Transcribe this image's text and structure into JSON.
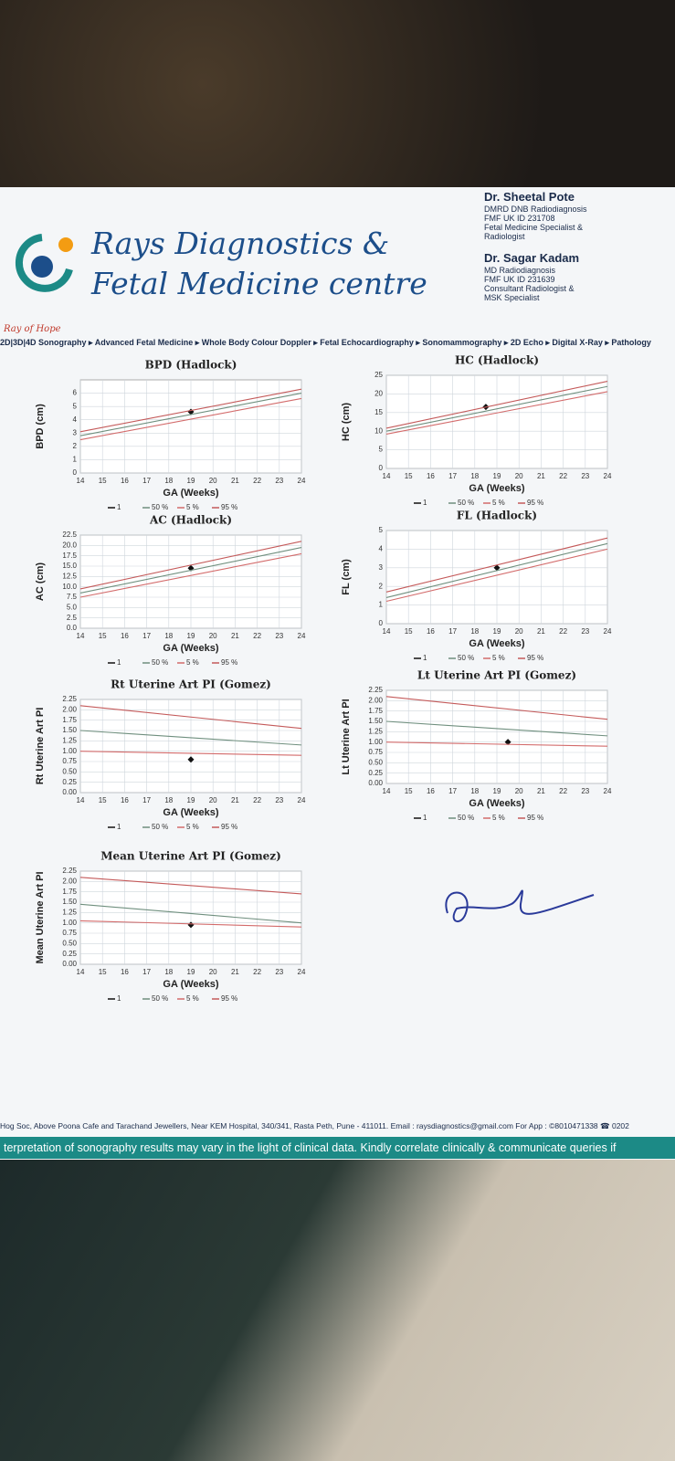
{
  "header": {
    "logo_tagline": "Ray of Hope",
    "title_line1": "Rays Diagnostics &",
    "title_line2": "Fetal Medicine centre",
    "doctors": [
      {
        "name": "Dr. Sheetal Pote",
        "details": [
          "DMRD DNB Radiodiagnosis",
          "FMF UK ID 231708",
          "Fetal Medicine Specialist &",
          "Radiologist"
        ]
      },
      {
        "name": "Dr. Sagar Kadam",
        "details": [
          "MD Radiodiagnosis",
          "FMF UK ID 231639",
          "Consultant Radiologist &",
          "MSK Specialist"
        ]
      }
    ],
    "services": "2D|3D|4D Sonography ▸ Advanced Fetal Medicine ▸ Whole Body Colour Doppler ▸ Fetal Echocardiography ▸ Sonomammography ▸ 2D Echo ▸ Digital X-Ray ▸ Pathology"
  },
  "chart_data": [
    {
      "type": "line",
      "title": "BPD (Hadlock)",
      "x_label": "GA (Weeks)",
      "y_label": "BPD (cm)",
      "grid": true,
      "xlim": [
        14,
        24
      ],
      "xticks": [
        14,
        15,
        16,
        17,
        18,
        19,
        20,
        21,
        22,
        23,
        24
      ],
      "ylim": [
        0,
        7
      ],
      "yticks": [
        0,
        1,
        2,
        3,
        4,
        5,
        6
      ],
      "series": [
        {
          "name": "1",
          "color": "#111111",
          "marker": "diamond",
          "x": [
            19
          ],
          "values": [
            4.6
          ]
        },
        {
          "name": "50 %",
          "color": "#6f8f7e",
          "x": [
            14,
            24
          ],
          "values": [
            2.8,
            6.0
          ]
        },
        {
          "name": "5 %",
          "color": "#d36b6b",
          "x": [
            14,
            24
          ],
          "values": [
            2.5,
            5.6
          ]
        },
        {
          "name": "95 %",
          "color": "#c45a5a",
          "x": [
            14,
            24
          ],
          "values": [
            3.1,
            6.3
          ]
        }
      ]
    },
    {
      "type": "line",
      "title": "HC (Hadlock)",
      "x_label": "GA (Weeks)",
      "y_label": "HC (cm)",
      "grid": true,
      "xlim": [
        14,
        24
      ],
      "xticks": [
        14,
        15,
        16,
        17,
        18,
        19,
        20,
        21,
        22,
        23,
        24
      ],
      "ylim": [
        0,
        25
      ],
      "yticks": [
        0,
        5,
        10,
        15,
        20,
        25
      ],
      "series": [
        {
          "name": "1",
          "color": "#111111",
          "marker": "diamond",
          "x": [
            18.5
          ],
          "values": [
            16.5
          ]
        },
        {
          "name": "50 %",
          "color": "#6f8f7e",
          "x": [
            14,
            24
          ],
          "values": [
            10.0,
            22.0
          ]
        },
        {
          "name": "5 %",
          "color": "#d36b6b",
          "x": [
            14,
            24
          ],
          "values": [
            9.2,
            20.6
          ]
        },
        {
          "name": "95 %",
          "color": "#c45a5a",
          "x": [
            14,
            24
          ],
          "values": [
            10.8,
            23.4
          ]
        }
      ]
    },
    {
      "type": "line",
      "title": "AC (Hadlock)",
      "x_label": "GA (Weeks)",
      "y_label": "AC (cm)",
      "grid": true,
      "xlim": [
        14,
        24
      ],
      "xticks": [
        14,
        15,
        16,
        17,
        18,
        19,
        20,
        21,
        22,
        23,
        24
      ],
      "ylim": [
        0,
        22.5
      ],
      "yticks": [
        {
          "value": 0,
          "label": "0.0"
        },
        2.5,
        {
          "value": 5,
          "label": "5.0"
        },
        7.5,
        {
          "value": 10,
          "label": "10.0"
        },
        12.5,
        {
          "value": 15,
          "label": "15.0"
        },
        17.5,
        {
          "value": 20,
          "label": "20.0"
        },
        22.5
      ],
      "series": [
        {
          "name": "1",
          "color": "#111111",
          "marker": "diamond",
          "x": [
            19
          ],
          "values": [
            14.5
          ]
        },
        {
          "name": "50 %",
          "color": "#6f8f7e",
          "x": [
            14,
            24
          ],
          "values": [
            8.5,
            19.5
          ]
        },
        {
          "name": "5 %",
          "color": "#d36b6b",
          "x": [
            14,
            24
          ],
          "values": [
            7.5,
            18.0
          ]
        },
        {
          "name": "95 %",
          "color": "#c45a5a",
          "x": [
            14,
            24
          ],
          "values": [
            9.5,
            21.0
          ]
        }
      ]
    },
    {
      "type": "line",
      "title": "FL (Hadlock)",
      "x_label": "GA (Weeks)",
      "y_label": "FL (cm)",
      "grid": true,
      "xlim": [
        14,
        24
      ],
      "xticks": [
        14,
        15,
        16,
        17,
        18,
        19,
        20,
        21,
        22,
        23,
        24
      ],
      "ylim": [
        0,
        5
      ],
      "yticks": [
        0,
        1,
        2,
        3,
        4,
        5
      ],
      "series": [
        {
          "name": "1",
          "color": "#111111",
          "marker": "diamond",
          "x": [
            19
          ],
          "values": [
            3.0
          ]
        },
        {
          "name": "50 %",
          "color": "#6f8f7e",
          "x": [
            14,
            24
          ],
          "values": [
            1.4,
            4.3
          ]
        },
        {
          "name": "5 %",
          "color": "#d36b6b",
          "x": [
            14,
            24
          ],
          "values": [
            1.2,
            4.0
          ]
        },
        {
          "name": "95 %",
          "color": "#c45a5a",
          "x": [
            14,
            24
          ],
          "values": [
            1.7,
            4.6
          ]
        }
      ]
    },
    {
      "type": "line",
      "title": "Rt Uterine Art PI (Gomez)",
      "x_label": "GA (Weeks)",
      "y_label": "Rt Uterine Art PI",
      "grid": true,
      "xlim": [
        14,
        24
      ],
      "xticks": [
        14,
        15,
        16,
        17,
        18,
        19,
        20,
        21,
        22,
        23,
        24
      ],
      "ylim": [
        0,
        2.25
      ],
      "yticks": [
        {
          "value": 0,
          "label": "0.00"
        },
        0.25,
        {
          "value": 0.5,
          "label": "0.50"
        },
        0.75,
        {
          "value": 1,
          "label": "1.00"
        },
        1.25,
        {
          "value": 1.5,
          "label": "1.50"
        },
        1.75,
        {
          "value": 2,
          "label": "2.00"
        },
        2.25
      ],
      "series": [
        {
          "name": "1",
          "color": "#111111",
          "marker": "diamond",
          "x": [
            19
          ],
          "values": [
            0.8
          ]
        },
        {
          "name": "50 %",
          "color": "#6f8f7e",
          "x": [
            14,
            24
          ],
          "values": [
            1.5,
            1.15
          ]
        },
        {
          "name": "5 %",
          "color": "#d36b6b",
          "x": [
            14,
            24
          ],
          "values": [
            1.0,
            0.9
          ]
        },
        {
          "name": "95 %",
          "color": "#c45a5a",
          "x": [
            14,
            24
          ],
          "values": [
            2.1,
            1.55
          ]
        }
      ]
    },
    {
      "type": "line",
      "title": "Lt Uterine Art PI (Gomez)",
      "x_label": "GA (Weeks)",
      "y_label": "Lt Uterine Art PI",
      "grid": true,
      "xlim": [
        14,
        24
      ],
      "xticks": [
        14,
        15,
        16,
        17,
        18,
        19,
        20,
        21,
        22,
        23,
        24
      ],
      "ylim": [
        0,
        2.25
      ],
      "yticks": [
        {
          "value": 0,
          "label": "0.00"
        },
        0.25,
        {
          "value": 0.5,
          "label": "0.50"
        },
        0.75,
        {
          "value": 1,
          "label": "1.00"
        },
        1.25,
        {
          "value": 1.5,
          "label": "1.50"
        },
        1.75,
        {
          "value": 2,
          "label": "2.00"
        },
        2.25
      ],
      "series": [
        {
          "name": "1",
          "color": "#111111",
          "marker": "diamond",
          "x": [
            19.5
          ],
          "values": [
            1.0
          ]
        },
        {
          "name": "50 %",
          "color": "#6f8f7e",
          "x": [
            14,
            24
          ],
          "values": [
            1.5,
            1.15
          ]
        },
        {
          "name": "5 %",
          "color": "#d36b6b",
          "x": [
            14,
            24
          ],
          "values": [
            1.0,
            0.9
          ]
        },
        {
          "name": "95 %",
          "color": "#c45a5a",
          "x": [
            14,
            24
          ],
          "values": [
            2.1,
            1.55
          ]
        }
      ]
    },
    {
      "type": "line",
      "title": "Mean Uterine Art PI (Gomez)",
      "x_label": "GA (Weeks)",
      "y_label": "Mean Uterine Art PI",
      "grid": true,
      "xlim": [
        14,
        24
      ],
      "xticks": [
        14,
        15,
        16,
        17,
        18,
        19,
        20,
        21,
        22,
        23,
        24
      ],
      "ylim": [
        0,
        2.25
      ],
      "yticks": [
        {
          "value": 0,
          "label": "0.00"
        },
        0.25,
        {
          "value": 0.5,
          "label": "0.50"
        },
        0.75,
        {
          "value": 1,
          "label": "1.00"
        },
        1.25,
        {
          "value": 1.5,
          "label": "1.50"
        },
        1.75,
        {
          "value": 2,
          "label": "2.00"
        },
        2.25
      ],
      "series": [
        {
          "name": "1",
          "color": "#111111",
          "marker": "diamond",
          "x": [
            19
          ],
          "values": [
            0.95
          ]
        },
        {
          "name": "50 %",
          "color": "#6f8f7e",
          "x": [
            14,
            24
          ],
          "values": [
            1.45,
            1.0
          ]
        },
        {
          "name": "5 %",
          "color": "#d36b6b",
          "x": [
            14,
            24
          ],
          "values": [
            1.05,
            0.9
          ]
        },
        {
          "name": "95 %",
          "color": "#c45a5a",
          "x": [
            14,
            24
          ],
          "values": [
            2.1,
            1.7
          ]
        }
      ]
    }
  ],
  "footer": {
    "address": "Hog Soc, Above Poona Cafe and Tarachand Jewellers, Near KEM Hospital, 340/341, Rasta Peth, Pune - 411011. Email : raysdiagnostics@gmail.com For App : ©8010471338 ☎ 0202",
    "note": "terpretation of sonography results may vary in the light of clinical data. Kindly correlate clinically & communicate queries if"
  }
}
